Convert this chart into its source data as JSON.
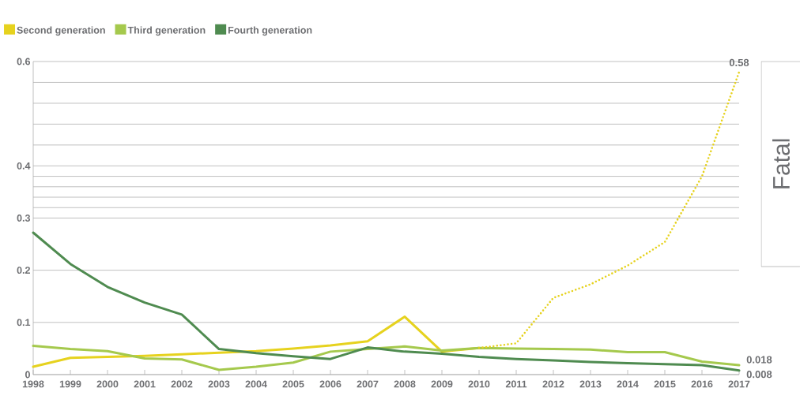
{
  "chart_data": {
    "type": "line",
    "categories": [
      "1998",
      "1999",
      "2000",
      "2001",
      "2002",
      "2003",
      "2004",
      "2005",
      "2006",
      "2007",
      "2008",
      "2009",
      "2010",
      "2011",
      "2012",
      "2013",
      "2014",
      "2015",
      "2016",
      "2017"
    ],
    "series": [
      {
        "name": "Second generation",
        "color": "#e6d21e",
        "line_style": "solid",
        "values": [
          0.015,
          0.032,
          0.034,
          0.036,
          0.039,
          0.042,
          0.045,
          0.05,
          0.056,
          0.064,
          0.111,
          0.044,
          0.051,
          null,
          null,
          null,
          null,
          null,
          null,
          null
        ]
      },
      {
        "name": "Third generation",
        "color": "#a5c94d",
        "line_style": "solid",
        "values": [
          0.055,
          0.049,
          0.045,
          0.031,
          0.029,
          0.009,
          0.015,
          0.023,
          0.044,
          0.049,
          0.054,
          0.046,
          0.051,
          0.05,
          0.049,
          0.048,
          0.043,
          0.043,
          0.025,
          0.018
        ],
        "value_labels": [
          null,
          null,
          null,
          null,
          null,
          null,
          null,
          null,
          null,
          null,
          null,
          null,
          null,
          null,
          null,
          null,
          null,
          null,
          null,
          "0.018"
        ]
      },
      {
        "name": "Fourth generation",
        "color": "#4f8b50",
        "line_style": "solid",
        "values": [
          0.272,
          0.212,
          0.168,
          0.138,
          0.115,
          0.049,
          0.041,
          0.035,
          0.03,
          0.052,
          0.044,
          0.04,
          0.034,
          0.03,
          0.027,
          0.024,
          0.022,
          0.02,
          0.018,
          0.008
        ],
        "value_labels": [
          null,
          null,
          null,
          null,
          null,
          null,
          null,
          null,
          null,
          null,
          null,
          null,
          null,
          null,
          null,
          null,
          null,
          null,
          null,
          "0.008"
        ]
      },
      {
        "color": "#e6d21e",
        "line_style": "dotted",
        "values": [
          null,
          null,
          null,
          null,
          null,
          null,
          null,
          null,
          null,
          null,
          null,
          null,
          0.051,
          0.06,
          0.147,
          0.173,
          0.209,
          0.254,
          0.38,
          0.58
        ],
        "value_labels": [
          null,
          null,
          null,
          null,
          null,
          null,
          null,
          null,
          null,
          null,
          null,
          null,
          null,
          null,
          null,
          null,
          null,
          null,
          null,
          "0.58"
        ]
      }
    ],
    "ylim": [
      0,
      0.6
    ],
    "yticks": [
      0,
      0.1,
      0.2,
      0.3,
      {
        "value": 0.32,
        "label": null
      },
      {
        "value": 0.34,
        "label": null
      },
      {
        "value": 0.36,
        "label": null
      },
      {
        "value": 0.38,
        "label": null
      },
      0.4,
      {
        "value": 0.44,
        "label": null
      },
      {
        "value": 0.48,
        "label": null
      },
      {
        "value": 0.52,
        "label": null
      },
      {
        "value": 0.56,
        "label": null
      },
      0.6
    ],
    "grid": "y",
    "legend": "top left",
    "annotations": [
      "Fatal"
    ]
  }
}
